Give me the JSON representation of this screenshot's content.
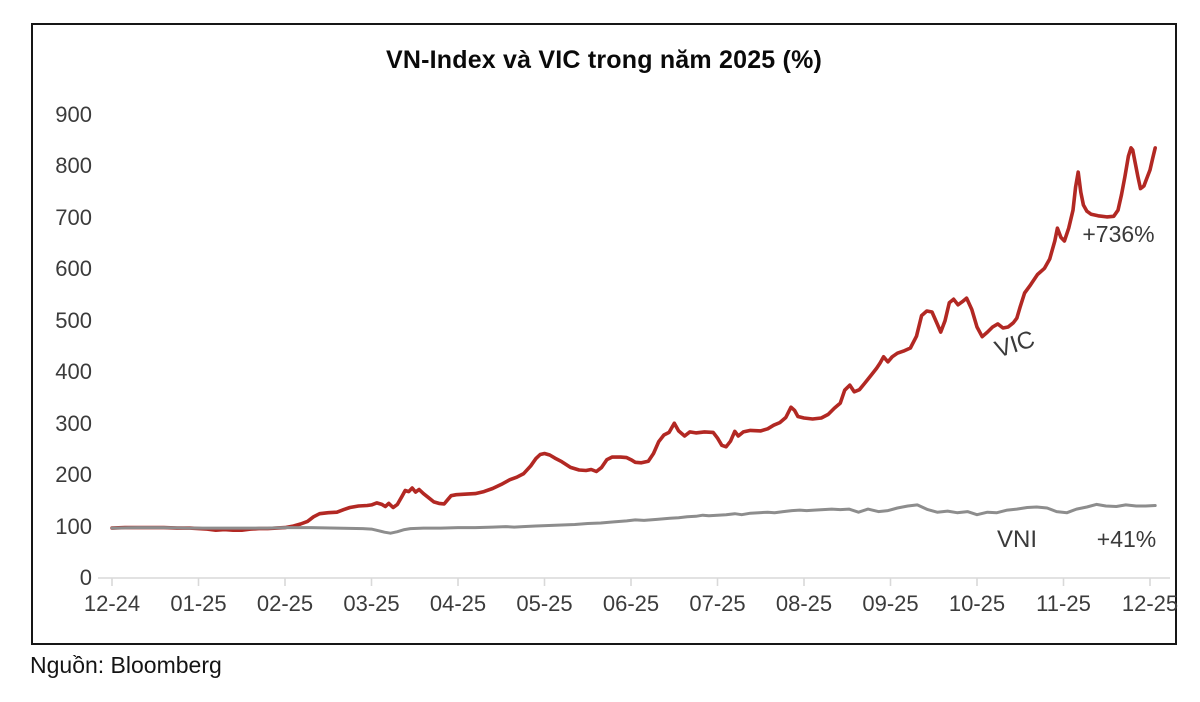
{
  "chart": {
    "title": "VN-Index và VIC trong năm 2025 (%)",
    "source": "Nguồn: Bloomberg"
  },
  "chart_data": {
    "type": "line",
    "title": "VN-Index và VIC trong năm 2025 (%)",
    "xlabel": "",
    "ylabel": "",
    "grid": false,
    "legend_position": "inline-annotations",
    "xlim": [
      0,
      12
    ],
    "ylim": [
      0,
      900
    ],
    "y_ticks": [
      900,
      800,
      700,
      600,
      500,
      400,
      300,
      200,
      100,
      0
    ],
    "x_labels": [
      "12-24",
      "01-25",
      "02-25",
      "03-25",
      "04-25",
      "05-25",
      "06-25",
      "07-25",
      "08-25",
      "09-25",
      "10-25",
      "11-25",
      "12-25"
    ],
    "axis_color": "#d9d9d9",
    "series": [
      {
        "name": "VIC",
        "color": "#b22823",
        "stroke_width": 3.6,
        "annotation": "+736%",
        "points": [
          [
            0,
            97
          ],
          [
            0.15,
            98
          ],
          [
            0.3,
            98
          ],
          [
            0.45,
            98
          ],
          [
            0.6,
            98
          ],
          [
            0.75,
            97
          ],
          [
            0.9,
            97
          ],
          [
            1.0,
            96
          ],
          [
            1.1,
            95
          ],
          [
            1.2,
            93
          ],
          [
            1.3,
            94
          ],
          [
            1.4,
            93
          ],
          [
            1.5,
            93
          ],
          [
            1.6,
            95
          ],
          [
            1.7,
            96
          ],
          [
            1.8,
            96
          ],
          [
            1.9,
            97
          ],
          [
            2.0,
            98
          ],
          [
            2.1,
            101
          ],
          [
            2.18,
            105
          ],
          [
            2.26,
            110
          ],
          [
            2.33,
            119
          ],
          [
            2.4,
            125
          ],
          [
            2.5,
            127
          ],
          [
            2.6,
            128
          ],
          [
            2.68,
            133
          ],
          [
            2.75,
            137
          ],
          [
            2.85,
            140
          ],
          [
            2.95,
            141
          ],
          [
            3.0,
            142
          ],
          [
            3.06,
            146
          ],
          [
            3.12,
            143
          ],
          [
            3.16,
            139
          ],
          [
            3.2,
            145
          ],
          [
            3.25,
            137
          ],
          [
            3.3,
            143
          ],
          [
            3.35,
            158
          ],
          [
            3.39,
            170
          ],
          [
            3.43,
            168
          ],
          [
            3.47,
            175
          ],
          [
            3.51,
            167
          ],
          [
            3.55,
            172
          ],
          [
            3.6,
            164
          ],
          [
            3.66,
            156
          ],
          [
            3.72,
            148
          ],
          [
            3.78,
            145
          ],
          [
            3.84,
            144
          ],
          [
            3.88,
            152
          ],
          [
            3.92,
            160
          ],
          [
            3.98,
            162
          ],
          [
            4.1,
            163
          ],
          [
            4.2,
            164
          ],
          [
            4.3,
            168
          ],
          [
            4.4,
            174
          ],
          [
            4.5,
            182
          ],
          [
            4.6,
            191
          ],
          [
            4.68,
            196
          ],
          [
            4.76,
            203
          ],
          [
            4.84,
            218
          ],
          [
            4.9,
            232
          ],
          [
            4.95,
            240
          ],
          [
            5.0,
            242
          ],
          [
            5.06,
            239
          ],
          [
            5.12,
            233
          ],
          [
            5.2,
            226
          ],
          [
            5.3,
            215
          ],
          [
            5.4,
            210
          ],
          [
            5.48,
            209
          ],
          [
            5.54,
            211
          ],
          [
            5.6,
            207
          ],
          [
            5.66,
            215
          ],
          [
            5.72,
            230
          ],
          [
            5.78,
            235
          ],
          [
            5.88,
            235
          ],
          [
            5.95,
            234
          ],
          [
            6.0,
            230
          ],
          [
            6.05,
            225
          ],
          [
            6.12,
            224
          ],
          [
            6.2,
            227
          ],
          [
            6.26,
            242
          ],
          [
            6.32,
            265
          ],
          [
            6.38,
            278
          ],
          [
            6.44,
            283
          ],
          [
            6.5,
            301
          ],
          [
            6.55,
            286
          ],
          [
            6.62,
            276
          ],
          [
            6.68,
            284
          ],
          [
            6.75,
            282
          ],
          [
            6.85,
            284
          ],
          [
            6.95,
            283
          ],
          [
            7.0,
            272
          ],
          [
            7.05,
            258
          ],
          [
            7.1,
            255
          ],
          [
            7.15,
            266
          ],
          [
            7.2,
            285
          ],
          [
            7.24,
            276
          ],
          [
            7.3,
            284
          ],
          [
            7.38,
            287
          ],
          [
            7.5,
            286
          ],
          [
            7.58,
            290
          ],
          [
            7.65,
            297
          ],
          [
            7.72,
            302
          ],
          [
            7.79,
            312
          ],
          [
            7.85,
            332
          ],
          [
            7.89,
            326
          ],
          [
            7.93,
            314
          ],
          [
            8.0,
            311
          ],
          [
            8.1,
            309
          ],
          [
            8.2,
            311
          ],
          [
            8.28,
            318
          ],
          [
            8.35,
            330
          ],
          [
            8.42,
            340
          ],
          [
            8.47,
            365
          ],
          [
            8.53,
            375
          ],
          [
            8.58,
            362
          ],
          [
            8.64,
            366
          ],
          [
            8.7,
            378
          ],
          [
            8.78,
            395
          ],
          [
            8.84,
            408
          ],
          [
            8.88,
            418
          ],
          [
            8.92,
            430
          ],
          [
            8.97,
            420
          ],
          [
            9.02,
            430
          ],
          [
            9.08,
            437
          ],
          [
            9.15,
            441
          ],
          [
            9.23,
            447
          ],
          [
            9.3,
            470
          ],
          [
            9.36,
            510
          ],
          [
            9.42,
            519
          ],
          [
            9.48,
            517
          ],
          [
            9.54,
            494
          ],
          [
            9.58,
            478
          ],
          [
            9.63,
            500
          ],
          [
            9.68,
            535
          ],
          [
            9.73,
            542
          ],
          [
            9.78,
            531
          ],
          [
            9.83,
            537
          ],
          [
            9.88,
            544
          ],
          [
            9.94,
            522
          ],
          [
            10.0,
            488
          ],
          [
            10.06,
            469
          ],
          [
            10.12,
            478
          ],
          [
            10.18,
            488
          ],
          [
            10.24,
            494
          ],
          [
            10.3,
            486
          ],
          [
            10.36,
            488
          ],
          [
            10.42,
            496
          ],
          [
            10.46,
            505
          ],
          [
            10.5,
            528
          ],
          [
            10.55,
            554
          ],
          [
            10.62,
            570
          ],
          [
            10.7,
            590
          ],
          [
            10.78,
            602
          ],
          [
            10.84,
            620
          ],
          [
            10.9,
            655
          ],
          [
            10.93,
            680
          ],
          [
            10.97,
            662
          ],
          [
            11.01,
            655
          ],
          [
            11.06,
            680
          ],
          [
            11.11,
            715
          ],
          [
            11.14,
            760
          ],
          [
            11.17,
            789
          ],
          [
            11.2,
            750
          ],
          [
            11.23,
            725
          ],
          [
            11.27,
            713
          ],
          [
            11.32,
            707
          ],
          [
            11.4,
            704
          ],
          [
            11.5,
            702
          ],
          [
            11.58,
            703
          ],
          [
            11.63,
            715
          ],
          [
            11.67,
            745
          ],
          [
            11.71,
            780
          ],
          [
            11.75,
            820
          ],
          [
            11.78,
            836
          ],
          [
            11.8,
            832
          ],
          [
            11.83,
            806
          ],
          [
            11.86,
            780
          ],
          [
            11.89,
            757
          ],
          [
            11.93,
            762
          ],
          [
            11.97,
            780
          ],
          [
            12.0,
            793
          ],
          [
            12.03,
            815
          ],
          [
            12.06,
            836
          ]
        ]
      },
      {
        "name": "VNI",
        "color": "#8d8d8d",
        "stroke_width": 3,
        "annotation": "+41%",
        "points": [
          [
            0,
            97
          ],
          [
            0.3,
            98
          ],
          [
            0.6,
            98
          ],
          [
            0.9,
            97
          ],
          [
            1.2,
            97
          ],
          [
            1.5,
            97
          ],
          [
            1.8,
            97
          ],
          [
            2.0,
            98
          ],
          [
            2.3,
            98
          ],
          [
            2.6,
            97
          ],
          [
            2.9,
            96
          ],
          [
            3.0,
            95
          ],
          [
            3.08,
            92
          ],
          [
            3.15,
            89
          ],
          [
            3.22,
            87
          ],
          [
            3.3,
            90
          ],
          [
            3.38,
            94
          ],
          [
            3.45,
            96
          ],
          [
            3.6,
            97
          ],
          [
            3.8,
            97
          ],
          [
            4.0,
            98
          ],
          [
            4.2,
            98
          ],
          [
            4.4,
            99
          ],
          [
            4.55,
            100
          ],
          [
            4.65,
            99
          ],
          [
            4.75,
            100
          ],
          [
            4.9,
            101
          ],
          [
            5.05,
            102
          ],
          [
            5.2,
            103
          ],
          [
            5.35,
            104
          ],
          [
            5.5,
            106
          ],
          [
            5.65,
            107
          ],
          [
            5.8,
            109
          ],
          [
            5.95,
            111
          ],
          [
            6.05,
            113
          ],
          [
            6.15,
            112
          ],
          [
            6.3,
            114
          ],
          [
            6.45,
            116
          ],
          [
            6.55,
            117
          ],
          [
            6.65,
            119
          ],
          [
            6.75,
            120
          ],
          [
            6.83,
            122
          ],
          [
            6.9,
            121
          ],
          [
            7.0,
            122
          ],
          [
            7.1,
            123
          ],
          [
            7.2,
            125
          ],
          [
            7.28,
            123
          ],
          [
            7.38,
            126
          ],
          [
            7.48,
            127
          ],
          [
            7.58,
            128
          ],
          [
            7.66,
            127
          ],
          [
            7.76,
            129
          ],
          [
            7.86,
            131
          ],
          [
            7.95,
            132
          ],
          [
            8.03,
            131
          ],
          [
            8.12,
            132
          ],
          [
            8.22,
            133
          ],
          [
            8.32,
            134
          ],
          [
            8.42,
            133
          ],
          [
            8.52,
            134
          ],
          [
            8.63,
            128
          ],
          [
            8.74,
            134
          ],
          [
            8.86,
            129
          ],
          [
            8.97,
            131
          ],
          [
            9.08,
            136
          ],
          [
            9.2,
            140
          ],
          [
            9.31,
            142
          ],
          [
            9.43,
            133
          ],
          [
            9.54,
            128
          ],
          [
            9.66,
            130
          ],
          [
            9.77,
            127
          ],
          [
            9.89,
            129
          ],
          [
            10.0,
            123
          ],
          [
            10.12,
            128
          ],
          [
            10.23,
            127
          ],
          [
            10.35,
            132
          ],
          [
            10.46,
            134
          ],
          [
            10.58,
            137
          ],
          [
            10.69,
            138
          ],
          [
            10.81,
            136
          ],
          [
            10.92,
            129
          ],
          [
            11.04,
            127
          ],
          [
            11.15,
            134
          ],
          [
            11.27,
            138
          ],
          [
            11.38,
            143
          ],
          [
            11.49,
            140
          ],
          [
            11.61,
            139
          ],
          [
            11.72,
            142
          ],
          [
            11.84,
            140
          ],
          [
            11.95,
            140
          ],
          [
            12.06,
            141
          ]
        ]
      }
    ]
  }
}
